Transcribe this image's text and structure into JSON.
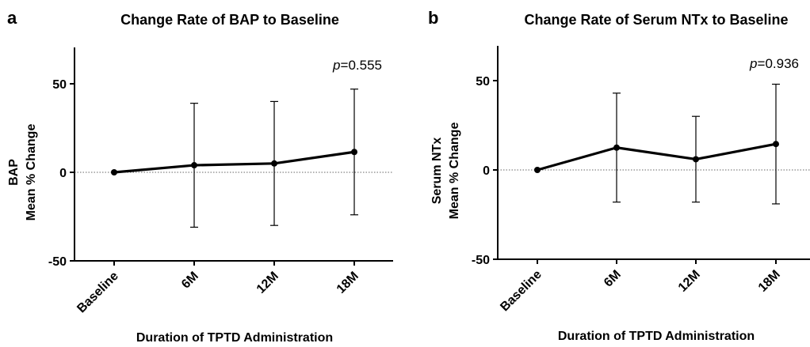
{
  "chart_data": [
    {
      "type": "line",
      "panel_label": "a",
      "title": "Change Rate of BAP to Baseline",
      "xlabel": "Duration of TPTD Administration",
      "ylabel_lines": [
        "BAP",
        "Mean % Change"
      ],
      "categories": [
        "Baseline",
        "6M",
        "12M",
        "18M"
      ],
      "series": [
        {
          "values": [
            0,
            4,
            5,
            11.5
          ],
          "error_upper": [
            0,
            39,
            40,
            47
          ],
          "error_lower": [
            0,
            -31,
            -30,
            -24
          ]
        }
      ],
      "ylim": [
        -50,
        70
      ],
      "yticks": [
        -50,
        0,
        50
      ],
      "ytick_labels": [
        "-50",
        "0",
        "50"
      ],
      "reference_line": 0,
      "annotation": {
        "italic": "p",
        "rest": "=0.555"
      },
      "color": "#000000"
    },
    {
      "type": "line",
      "panel_label": "b",
      "title": "Change Rate of Serum NTx to Baseline",
      "xlabel": "Duration of TPTD Administration",
      "ylabel_lines": [
        "Serum NTx",
        "Mean %  Change"
      ],
      "categories": [
        "Baseline",
        "6M",
        "12M",
        "18M"
      ],
      "series": [
        {
          "values": [
            0,
            12.5,
            6,
            14.5
          ],
          "error_upper": [
            0,
            43,
            30,
            48
          ],
          "error_lower": [
            0,
            -18,
            -18,
            -19
          ]
        }
      ],
      "ylim": [
        -50,
        70
      ],
      "yticks": [
        -50,
        0,
        50
      ],
      "ytick_labels": [
        "-50",
        "0",
        "50"
      ],
      "reference_line": 0,
      "annotation": {
        "italic": "p",
        "rest": "=0.936"
      },
      "color": "#000000"
    }
  ]
}
